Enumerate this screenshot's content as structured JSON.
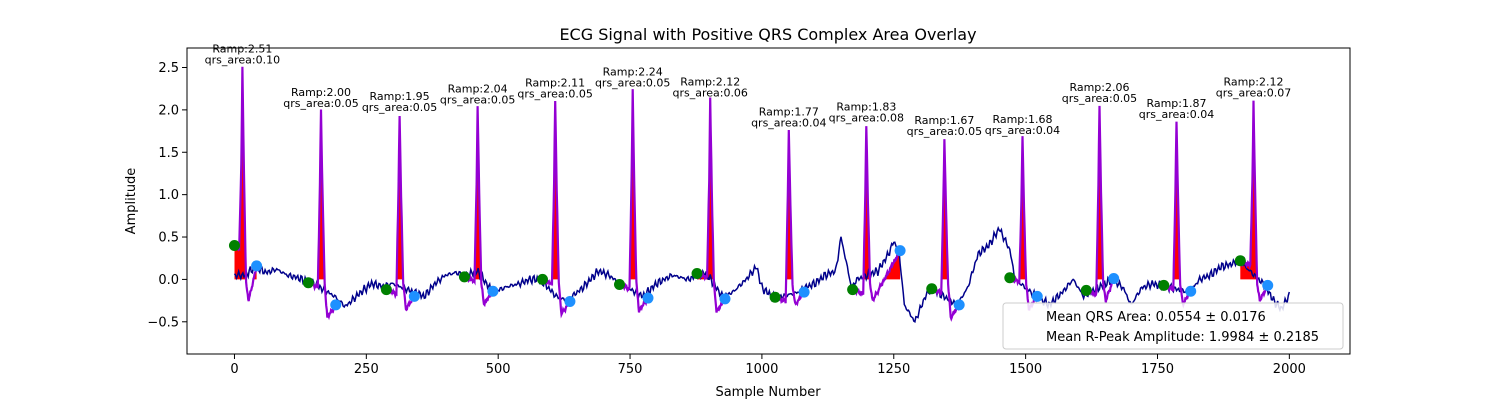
{
  "chart_data": {
    "type": "line",
    "title": "ECG Signal with Positive QRS Complex Area Overlay",
    "xlabel": "Sample Number",
    "ylabel": "Amplitude",
    "xlim": [
      -90,
      2115
    ],
    "ylim": [
      -0.88,
      2.73
    ],
    "xticks": [
      0,
      250,
      500,
      750,
      1000,
      1250,
      1500,
      1750,
      2000
    ],
    "xtick_labels": [
      "0",
      "250",
      "500",
      "750",
      "1000",
      "1250",
      "1500",
      "1750",
      "2000"
    ],
    "yticks": [
      -0.5,
      0.0,
      0.5,
      1.0,
      1.5,
      2.0,
      2.5
    ],
    "ytick_labels": [
      "−0.5",
      "0.0",
      "0.5",
      "1.0",
      "1.5",
      "2.0",
      "2.5"
    ],
    "grid": false,
    "legend_position": "bottom-right",
    "colors": {
      "signal": "#00008b",
      "qrs": "#9400d3",
      "area": "#ff0000",
      "q_onset": "#008000",
      "s_offset": "#1e90ff"
    },
    "signal_control": [
      [
        0,
        0.05
      ],
      [
        20,
        0.05
      ],
      [
        40,
        0.15
      ],
      [
        60,
        0.08
      ],
      [
        80,
        0.12
      ],
      [
        100,
        0.05
      ],
      [
        120,
        0.02
      ],
      [
        140,
        -0.03
      ],
      [
        150,
        -0.05
      ],
      [
        190,
        -0.2
      ],
      [
        210,
        -0.32
      ],
      [
        240,
        -0.15
      ],
      [
        260,
        -0.05
      ],
      [
        280,
        -0.08
      ],
      [
        300,
        -0.05
      ],
      [
        320,
        -0.1
      ],
      [
        340,
        -0.15
      ],
      [
        360,
        -0.2
      ],
      [
        380,
        -0.05
      ],
      [
        400,
        0.05
      ],
      [
        420,
        0.08
      ],
      [
        440,
        0.05
      ],
      [
        460,
        0.1
      ],
      [
        490,
        -0.15
      ],
      [
        520,
        -0.08
      ],
      [
        540,
        -0.05
      ],
      [
        560,
        0.0
      ],
      [
        580,
        0.0
      ],
      [
        610,
        -0.2
      ],
      [
        630,
        -0.25
      ],
      [
        660,
        -0.1
      ],
      [
        690,
        0.1
      ],
      [
        710,
        0.05
      ],
      [
        730,
        -0.05
      ],
      [
        775,
        -0.2
      ],
      [
        800,
        -0.05
      ],
      [
        830,
        0.05
      ],
      [
        860,
        0.0
      ],
      [
        880,
        0.05
      ],
      [
        895,
        0.07
      ],
      [
        925,
        -0.2
      ],
      [
        945,
        -0.15
      ],
      [
        970,
        0.0
      ],
      [
        990,
        0.15
      ],
      [
        1000,
        -0.1
      ],
      [
        1020,
        -0.2
      ],
      [
        1040,
        -0.2
      ],
      [
        1070,
        -0.15
      ],
      [
        1080,
        -0.1
      ],
      [
        1100,
        -0.05
      ],
      [
        1120,
        0.05
      ],
      [
        1140,
        0.1
      ],
      [
        1150,
        0.5
      ],
      [
        1160,
        0.2
      ],
      [
        1170,
        -0.1
      ],
      [
        1180,
        0.0
      ],
      [
        1220,
        0.1
      ],
      [
        1240,
        0.3
      ],
      [
        1250,
        0.45
      ],
      [
        1260,
        0.33
      ],
      [
        1270,
        -0.3
      ],
      [
        1290,
        -0.5
      ],
      [
        1310,
        -0.2
      ],
      [
        1320,
        -0.1
      ],
      [
        1370,
        -0.3
      ],
      [
        1390,
        -0.1
      ],
      [
        1410,
        0.3
      ],
      [
        1430,
        0.4
      ],
      [
        1450,
        0.6
      ],
      [
        1470,
        0.35
      ],
      [
        1480,
        0.0
      ],
      [
        1520,
        -0.2
      ],
      [
        1545,
        -0.3
      ],
      [
        1570,
        -0.15
      ],
      [
        1590,
        0.0
      ],
      [
        1610,
        -0.2
      ],
      [
        1665,
        0.0
      ],
      [
        1685,
        -0.1
      ],
      [
        1700,
        -0.3
      ],
      [
        1720,
        -0.1
      ],
      [
        1740,
        -0.05
      ],
      [
        1760,
        -0.08
      ],
      [
        1810,
        -0.15
      ],
      [
        1830,
        0.0
      ],
      [
        1850,
        0.05
      ],
      [
        1870,
        0.15
      ],
      [
        1890,
        0.18
      ],
      [
        1905,
        0.22
      ],
      [
        1955,
        -0.08
      ],
      [
        1970,
        -0.25
      ],
      [
        1985,
        -0.35
      ],
      [
        2000,
        -0.18
      ]
    ],
    "beats": [
      {
        "q": 0,
        "q_amp": 0.4,
        "r": 15,
        "r_amp": 2.51,
        "s": 42,
        "s_amp": 0.16,
        "label1": "Ramp:2.51",
        "label2": "qrs_area:0.10"
      },
      {
        "q": 140,
        "q_amp": -0.04,
        "r": 164,
        "r_amp": 2.0,
        "s": 192,
        "s_amp": -0.3,
        "label1": "Ramp:2.00",
        "label2": "qrs_area:0.05"
      },
      {
        "q": 288,
        "q_amp": -0.12,
        "r": 313,
        "r_amp": 1.95,
        "s": 341,
        "s_amp": -0.2,
        "label1": "Ramp:1.95",
        "label2": "qrs_area:0.05"
      },
      {
        "q": 436,
        "q_amp": 0.03,
        "r": 461,
        "r_amp": 2.04,
        "s": 490,
        "s_amp": -0.14,
        "label1": "Ramp:2.04",
        "label2": "qrs_area:0.05"
      },
      {
        "q": 584,
        "q_amp": 0.0,
        "r": 608,
        "r_amp": 2.11,
        "s": 636,
        "s_amp": -0.26,
        "label1": "Ramp:2.11",
        "label2": "qrs_area:0.05"
      },
      {
        "q": 730,
        "q_amp": -0.06,
        "r": 755,
        "r_amp": 2.24,
        "s": 784,
        "s_amp": -0.22,
        "label1": "Ramp:2.24",
        "label2": "qrs_area:0.05"
      },
      {
        "q": 877,
        "q_amp": 0.07,
        "r": 902,
        "r_amp": 2.12,
        "s": 930,
        "s_amp": -0.23,
        "label1": "Ramp:2.12",
        "label2": "qrs_area:0.06"
      },
      {
        "q": 1025,
        "q_amp": -0.21,
        "r": 1051,
        "r_amp": 1.77,
        "s": 1080,
        "s_amp": -0.15,
        "label1": "Ramp:1.77",
        "label2": "qrs_area:0.04"
      },
      {
        "q": 1172,
        "q_amp": -0.12,
        "r": 1198,
        "r_amp": 1.83,
        "s": 1262,
        "s_amp": 0.34,
        "label1": "Ramp:1.83",
        "label2": "qrs_area:0.08"
      },
      {
        "q": 1322,
        "q_amp": -0.11,
        "r": 1346,
        "r_amp": 1.67,
        "s": 1374,
        "s_amp": -0.3,
        "label1": "Ramp:1.67",
        "label2": "qrs_area:0.05"
      },
      {
        "q": 1470,
        "q_amp": 0.02,
        "r": 1494,
        "r_amp": 1.68,
        "s": 1522,
        "s_amp": -0.2,
        "label1": "Ramp:1.68",
        "label2": "qrs_area:0.04"
      },
      {
        "q": 1615,
        "q_amp": -0.13,
        "r": 1640,
        "r_amp": 2.06,
        "s": 1667,
        "s_amp": 0.01,
        "label1": "Ramp:2.06",
        "label2": "qrs_area:0.05"
      },
      {
        "q": 1762,
        "q_amp": -0.07,
        "r": 1786,
        "r_amp": 1.87,
        "s": 1813,
        "s_amp": -0.14,
        "label1": "Ramp:1.87",
        "label2": "qrs_area:0.04"
      },
      {
        "q": 1907,
        "q_amp": 0.22,
        "r": 1932,
        "r_amp": 2.12,
        "s": 1959,
        "s_amp": -0.07,
        "label1": "Ramp:2.12",
        "label2": "qrs_area:0.07"
      }
    ],
    "legend": [
      "Mean QRS Area: 0.0554 ± 0.0176",
      "Mean R-Peak Amplitude: 1.9984 ± 0.2185"
    ]
  }
}
